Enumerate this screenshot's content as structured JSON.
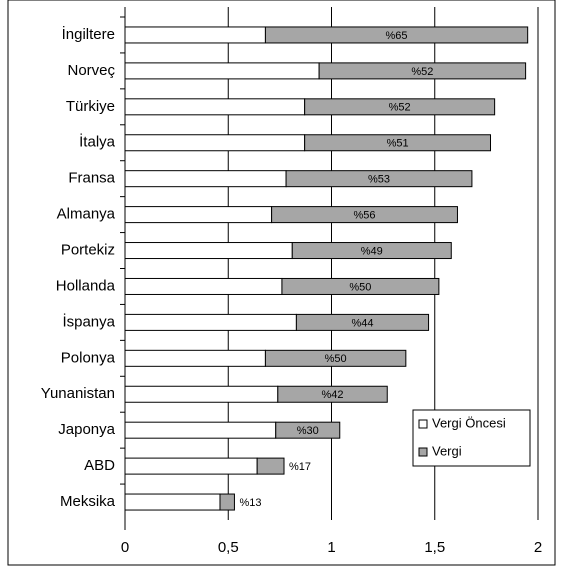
{
  "chart_data": {
    "type": "stacked-barh",
    "categories": [
      "İngiltere",
      "Norveç",
      "Türkiye",
      "İtalya",
      "Fransa",
      "Almanya",
      "Portekiz",
      "Hollanda",
      "İspanya",
      "Polonya",
      "Yunanistan",
      "Japonya",
      "ABD",
      "Meksika"
    ],
    "series": [
      {
        "name": "Vergi Öncesi",
        "color": "#ffffff",
        "values": [
          0.68,
          0.94,
          0.87,
          0.87,
          0.78,
          0.71,
          0.81,
          0.76,
          0.83,
          0.68,
          0.74,
          0.73,
          0.64,
          0.46
        ]
      },
      {
        "name": "Vergi",
        "color": "#a6a6a6",
        "values": [
          1.27,
          1.0,
          0.92,
          0.9,
          0.9,
          0.9,
          0.77,
          0.76,
          0.64,
          0.68,
          0.53,
          0.31,
          0.13,
          0.07
        ]
      }
    ],
    "segment_labels": [
      "%65",
      "%52",
      "%52",
      "%51",
      "%53",
      "%56",
      "%49",
      "%50",
      "%44",
      "%50",
      "%42",
      "%30",
      "%17",
      "%13"
    ],
    "xlim": [
      0,
      2
    ],
    "xticks": [
      0,
      {
        "value": 0.5,
        "label": "0,5"
      },
      1,
      {
        "value": 1.5,
        "label": "1,5"
      },
      2
    ],
    "grid": true,
    "legend": "lower right"
  }
}
